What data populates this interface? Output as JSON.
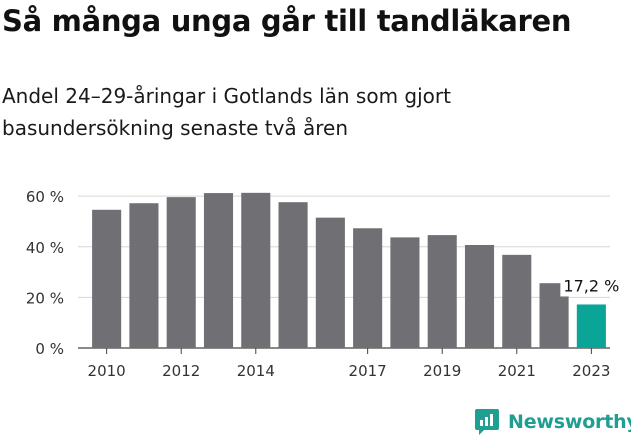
{
  "header": {
    "title": "Så många unga går till tandläkaren",
    "subtitle": "Andel 24–29-åringar i Gotlands län som gjort basundersökning senaste två åren"
  },
  "brand": {
    "name": "Newsworthy",
    "color": "#1f9e92"
  },
  "colors": {
    "bar": "#6f6f74",
    "highlight": "#0aa596",
    "grid": "#d6d6d6",
    "axis": "#444444"
  },
  "chart_data": {
    "type": "bar",
    "x": [
      2010,
      2011,
      2012,
      2013,
      2014,
      2015,
      2016,
      2017,
      2018,
      2019,
      2020,
      2021,
      2022,
      2023
    ],
    "values": [
      54.6,
      57.2,
      59.6,
      61.2,
      61.3,
      57.6,
      51.5,
      47.3,
      43.7,
      44.6,
      40.7,
      36.8,
      25.6,
      17.2
    ],
    "x_tick_labels": [
      "2010",
      "2012",
      "2014",
      "2017",
      "2019",
      "2021",
      "2023"
    ],
    "y_ticks": [
      0,
      20,
      40,
      60
    ],
    "y_tick_labels": [
      "0 %",
      "20 %",
      "40 %",
      "60 %"
    ],
    "ylim": [
      0,
      64
    ],
    "highlight_index": 13,
    "annotation": "17,2 %",
    "grid": true,
    "legend": false
  }
}
